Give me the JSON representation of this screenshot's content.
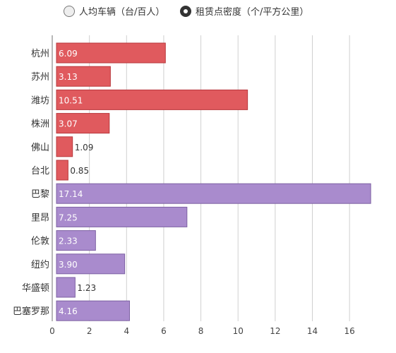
{
  "legend": {
    "items": [
      {
        "label": "人均车辆（台/百人）",
        "selected": false
      },
      {
        "label": "租赁点密度（个/平方公里）",
        "selected": true
      }
    ]
  },
  "chart_data": {
    "type": "bar",
    "orientation": "horizontal",
    "xlim": [
      0,
      17.4
    ],
    "xticks": [
      0,
      2,
      4,
      6,
      8,
      10,
      12,
      14,
      16
    ],
    "grid": true,
    "legend_position": "top",
    "categories": [
      "杭州",
      "苏州",
      "潍坊",
      "株洲",
      "佛山",
      "台北",
      "巴黎",
      "里昂",
      "伦敦",
      "纽约",
      "华盛顿",
      "巴塞罗那"
    ],
    "values": [
      6.09,
      3.13,
      10.51,
      3.07,
      1.09,
      0.85,
      17.14,
      7.25,
      2.33,
      3.9,
      1.23,
      4.16
    ],
    "value_labels": [
      "6.09",
      "3.13",
      "10.51",
      "3.07",
      "1.09",
      "0.85",
      "17.14",
      "7.25",
      "2.33",
      "3.90",
      "1.23",
      "4.16"
    ],
    "groups": [
      "china",
      "china",
      "china",
      "china",
      "china",
      "china",
      "world",
      "world",
      "world",
      "world",
      "world",
      "world"
    ],
    "colors": {
      "china": "#e05a5e",
      "china_stroke": "#b8383c",
      "world": "#a98bcd",
      "world_stroke": "#7d62a3"
    }
  }
}
